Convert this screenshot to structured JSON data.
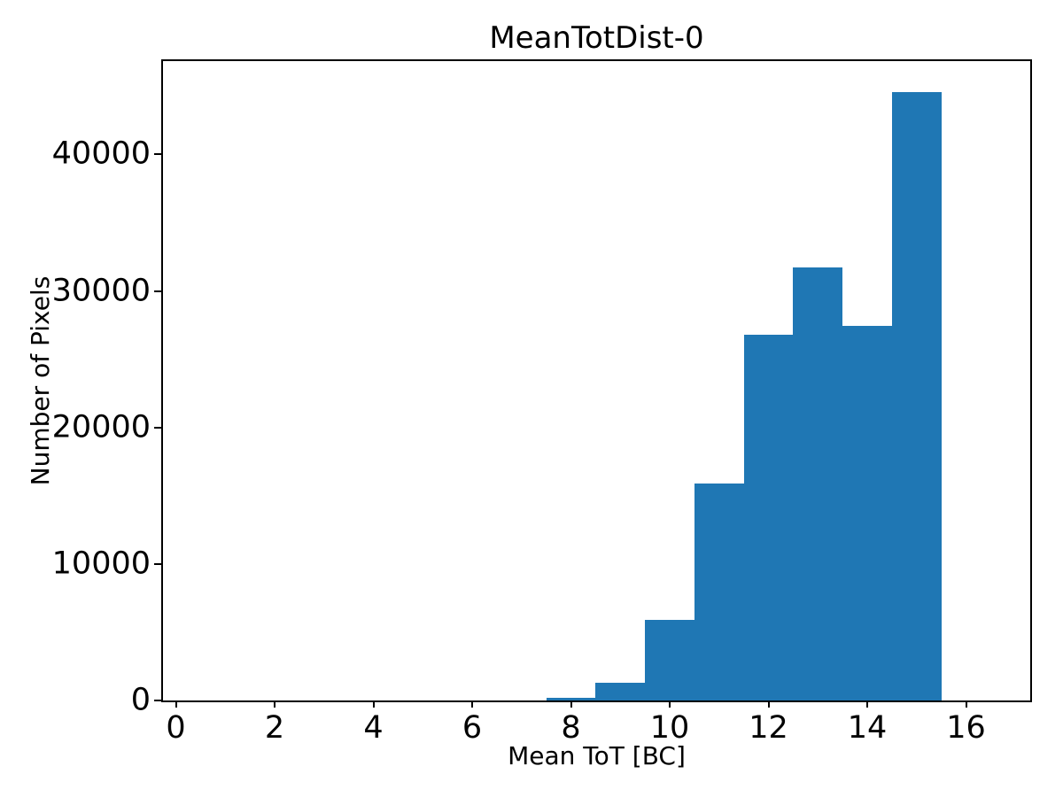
{
  "chart_data": {
    "type": "bar",
    "subtype": "histogram",
    "title": "MeanTotDist-0",
    "xlabel": "Mean ToT [BC]",
    "ylabel": "Number of Pixels",
    "bin_edges": [
      7.5,
      8.5,
      9.5,
      10.5,
      11.5,
      12.5,
      13.5,
      14.5,
      15.5
    ],
    "counts": [
      220,
      1290,
      5930,
      15870,
      26770,
      31700,
      27410,
      44570
    ],
    "xticks": [
      0,
      2,
      4,
      6,
      8,
      10,
      12,
      14,
      16
    ],
    "yticks": [
      0,
      10000,
      20000,
      30000,
      40000
    ],
    "xlim": [
      -0.26,
      17.3
    ],
    "ylim": [
      0,
      46830
    ],
    "bar_color": "#1f77b4",
    "axis_color": "#000000",
    "background_color": "#ffffff",
    "grid": false,
    "legend": null
  }
}
